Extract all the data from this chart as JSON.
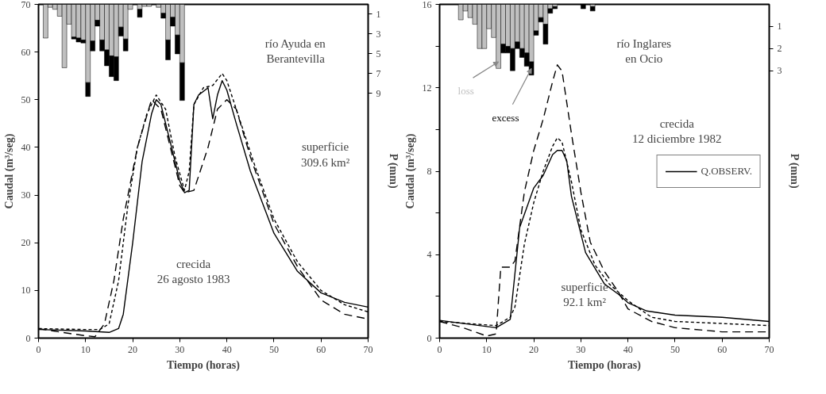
{
  "chart_data": [
    {
      "type": "line",
      "xlabel": "Tiempo (horas)",
      "ylabel": "Caudal (m³/seg)",
      "y2label": "P (mm)",
      "xlim": [
        0,
        70
      ],
      "ylim": [
        0,
        70
      ],
      "y2lim": [
        33.7,
        0
      ],
      "xticks": [
        0,
        10,
        20,
        30,
        40,
        50,
        60,
        70
      ],
      "yticks": [
        0,
        10,
        20,
        30,
        40,
        50,
        60,
        70
      ],
      "y2ticks": [
        1,
        3,
        5,
        7,
        9
      ],
      "grid": false,
      "legend": false,
      "stacked": true,
      "annotations": [
        "río Ayuda en\nBerantevilla",
        "superficie\n309.6 km²",
        "crecida\n26 agosto 1983"
      ],
      "x": [
        1.5,
        2.5,
        3.5,
        4.5,
        5.5,
        6.5,
        7.5,
        8.5,
        9.5,
        10.5,
        11.5,
        12.5,
        13.5,
        14.5,
        15.5,
        16.5,
        17.5,
        18.5,
        19.5,
        21.5,
        22.5,
        23.5,
        25.5,
        26.5,
        27.5,
        28.5,
        29.5,
        30.5
      ],
      "series": [
        {
          "type": "bar",
          "axis": "y2",
          "color": "#c0c0c0",
          "values": [
            3.4,
            0.3,
            0.5,
            1.2,
            6.4,
            2.0,
            3.3,
            3.4,
            3.6,
            7.9,
            3.7,
            1.6,
            3.6,
            4.6,
            5.2,
            5.3,
            2.3,
            3.5,
            0.5,
            0.5,
            0.2,
            0.2,
            0.3,
            0.9,
            3.6,
            1.3,
            3.1,
            5.9
          ]
        },
        {
          "type": "bar",
          "axis": "y2",
          "color": "#000000",
          "values": [
            null,
            null,
            null,
            null,
            null,
            null,
            0.2,
            0.4,
            0.3,
            1.4,
            1.0,
            0.6,
            1.1,
            1.6,
            2.1,
            2.4,
            0.9,
            1.2,
            null,
            0.8,
            null,
            null,
            null,
            0.5,
            2.0,
            0.9,
            1.9,
            3.8
          ]
        },
        {
          "color": "#000000",
          "line_style": "solid",
          "x": [
            0,
            10,
            15,
            17,
            18,
            20,
            22,
            24,
            25,
            26,
            28,
            30,
            31,
            32,
            33,
            34,
            36,
            37,
            38,
            39,
            40,
            42,
            45,
            50,
            55,
            60,
            65,
            70
          ],
          "values": [
            1.8,
            1.5,
            1.2,
            2,
            5,
            20,
            37,
            47,
            50,
            49,
            41,
            33,
            30.5,
            31,
            49,
            51,
            52.5,
            46,
            51,
            54,
            52,
            45,
            35,
            22,
            14,
            9.5,
            7.5,
            6.5
          ]
        },
        {
          "color": "#000000",
          "line_style": "dotted",
          "x": [
            0,
            10,
            13,
            15,
            17,
            19,
            21,
            23,
            25,
            27,
            29,
            31,
            32,
            33,
            35,
            37,
            39,
            40,
            43,
            46,
            50,
            55,
            60,
            65,
            70
          ],
          "values": [
            2,
            1.8,
            1.8,
            3,
            12,
            28,
            40,
            47,
            51,
            48,
            38,
            31,
            35,
            49,
            52.5,
            53,
            55.5,
            54,
            45,
            36,
            25,
            16,
            10,
            7,
            5.5
          ]
        },
        {
          "color": "#000000",
          "line_style": "dashed",
          "x": [
            0,
            5,
            10,
            12,
            14,
            16,
            18,
            21,
            24,
            26,
            28,
            30,
            31,
            33,
            36,
            38,
            40,
            42,
            45,
            50,
            55,
            60,
            65,
            70
          ],
          "values": [
            2,
            1.2,
            0.5,
            0.3,
            3,
            12,
            25,
            40,
            50,
            48,
            40,
            32,
            30.5,
            31,
            40,
            48,
            50,
            48,
            38,
            24,
            15,
            8,
            5,
            4
          ]
        }
      ]
    },
    {
      "type": "line",
      "xlabel": "Tiempo (horas)",
      "ylabel": "Caudal (m³/seg)",
      "y2label": "P (mm)",
      "xlim": [
        0,
        70
      ],
      "ylim": [
        0,
        16
      ],
      "y2lim": [
        15.1,
        0
      ],
      "xticks": [
        0,
        10,
        20,
        30,
        40,
        50,
        60,
        70
      ],
      "yticks": [
        0,
        {
          "value": 2,
          "label": null
        },
        4,
        {
          "value": 6,
          "label": null
        },
        8,
        {
          "value": 10,
          "label": null
        },
        12,
        {
          "value": 14,
          "label": null
        },
        16
      ],
      "y2ticks": [
        1,
        2,
        3
      ],
      "grid": false,
      "legend": "right",
      "stacked": true,
      "annotations": [
        "río Inglares\nen Ocio",
        "crecida\n12 diciembre 1982",
        "superficie\n92.1 km²"
      ],
      "x": [
        4.5,
        5.5,
        6.5,
        7.5,
        8.5,
        9.5,
        10.5,
        11.5,
        12.5,
        13.5,
        14.5,
        15.5,
        16.5,
        17.5,
        18.5,
        19.5,
        20.5,
        21.5,
        22.5,
        23.5,
        24.5,
        30.5,
        32.5
      ],
      "series": [
        {
          "type": "bar",
          "axis": "y2",
          "name": "loss",
          "color": "#c0c0c0",
          "values": [
            0.7,
            0.3,
            0.6,
            0.9,
            2.0,
            2.0,
            1.1,
            1.5,
            2.9,
            1.8,
            1.9,
            2.0,
            1.7,
            2.0,
            2.2,
            2.6,
            1.2,
            0.6,
            0.9,
            0.2,
            0.1,
            null,
            0.1
          ]
        },
        {
          "type": "bar",
          "axis": "y2",
          "name": "excess",
          "color": "#000000",
          "values": [
            null,
            null,
            null,
            null,
            null,
            null,
            null,
            null,
            null,
            0.4,
            0.3,
            1.0,
            0.3,
            0.4,
            0.6,
            0.6,
            0.2,
            0.2,
            0.9,
            0.2,
            0.1,
            0.2,
            0.2
          ]
        },
        {
          "name": "Q.OBSERV.",
          "color": "#000000",
          "line_style": "solid",
          "x": [
            0,
            12,
            15,
            17,
            20,
            22,
            24,
            25,
            26,
            27,
            28,
            31,
            35,
            38,
            40,
            44,
            50,
            60,
            70
          ],
          "values": [
            0.85,
            0.5,
            0.9,
            5.3,
            7.2,
            7.8,
            8.8,
            9.0,
            9.0,
            8.5,
            6.8,
            4.1,
            2.6,
            2.1,
            1.7,
            1.3,
            1.1,
            1.0,
            0.8
          ]
        },
        {
          "color": "#000000",
          "line_style": "dotted",
          "x": [
            0,
            12,
            15,
            16,
            18,
            20,
            22,
            24,
            25,
            26,
            28,
            30,
            33,
            36,
            40,
            45,
            50,
            60,
            70
          ],
          "values": [
            0.8,
            0.6,
            1.0,
            1.5,
            4.5,
            6.5,
            8.0,
            9.2,
            9.6,
            9.4,
            7.5,
            5.2,
            3.5,
            2.6,
            1.8,
            1.0,
            0.8,
            0.7,
            0.6
          ]
        },
        {
          "color": "#000000",
          "line_style": "dashed",
          "x": [
            0,
            5,
            10,
            12,
            13,
            15,
            16,
            18,
            20,
            22,
            24,
            25,
            26,
            28,
            30,
            32,
            35,
            38,
            40,
            45,
            50,
            60,
            70
          ],
          "values": [
            0.8,
            0.5,
            0.1,
            0.2,
            3.4,
            3.4,
            3.7,
            7,
            9,
            10.5,
            12.3,
            13.1,
            12.8,
            9.8,
            7,
            4.6,
            3.2,
            2.2,
            1.4,
            0.8,
            0.5,
            0.3,
            0.3
          ]
        }
      ]
    }
  ]
}
